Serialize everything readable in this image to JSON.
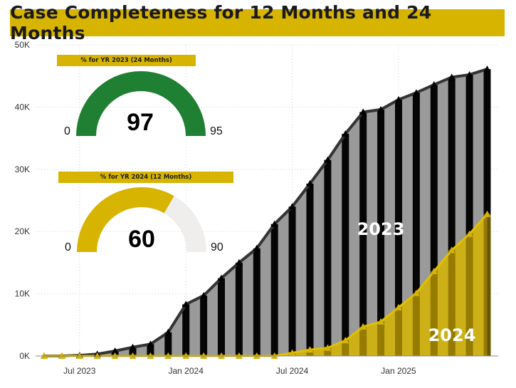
{
  "title": "Case Completeness for 12 Months and 24 Months",
  "chart_data": {
    "type": "bar",
    "ylim": [
      0,
      50000
    ],
    "y_ticks": [
      "0K",
      "10K",
      "20K",
      "30K",
      "40K",
      "50K"
    ],
    "x_ticks": [
      "Jul 2023",
      "Jan 2024",
      "Jul 2024",
      "Jan 2025"
    ],
    "categories": [
      "2023-05",
      "2023-06",
      "2023-07",
      "2023-08",
      "2023-09",
      "2023-10",
      "2023-11",
      "2023-12",
      "2024-01",
      "2024-02",
      "2024-03",
      "2024-04",
      "2024-05",
      "2024-06",
      "2024-07",
      "2024-08",
      "2024-09",
      "2024-10",
      "2024-11",
      "2024-12",
      "2025-01",
      "2025-02",
      "2025-03",
      "2025-04",
      "2025-05",
      "2025-06"
    ],
    "series": [
      {
        "name": "2023",
        "color": "#1a1a1a",
        "values": [
          0,
          0,
          100,
          300,
          800,
          1400,
          1900,
          3800,
          8300,
          9700,
          12500,
          15000,
          17300,
          21200,
          24000,
          27700,
          31500,
          35700,
          39200,
          39600,
          41200,
          42300,
          43600,
          44800,
          45200,
          46100
        ]
      },
      {
        "name": "2024",
        "color": "#d6b400",
        "values": [
          0,
          0,
          0,
          0,
          0,
          0,
          0,
          0,
          0,
          0,
          0,
          0,
          0,
          0,
          500,
          1000,
          1300,
          2500,
          4700,
          5500,
          7800,
          10100,
          13600,
          17000,
          19600,
          22800
        ]
      }
    ],
    "gauges": [
      {
        "banner": "% for YR 2023 (24 Months)",
        "value": "97",
        "min": "0",
        "max": "95",
        "fraction": 1.0,
        "color": "#1f7f32"
      },
      {
        "banner": "% for YR 2024 (12 Months)",
        "value": "60",
        "min": "0",
        "max": "90",
        "fraction": 0.667,
        "color": "#d6b400"
      }
    ]
  }
}
